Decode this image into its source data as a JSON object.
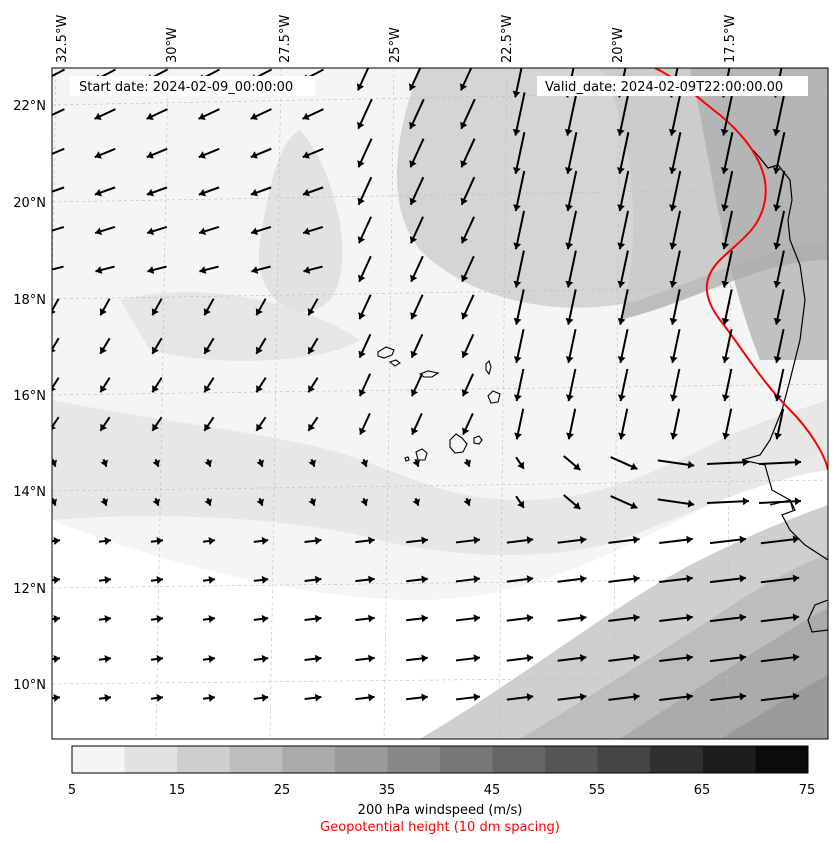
{
  "start_date": "Start date: 2024-02-09_00:00:00",
  "valid_date": "Valid_date: 2024-02-09T22:00:00.00",
  "lon_labels": [
    "32.5°W",
    "30°W",
    "27.5°W",
    "25°W",
    "22.5°W",
    "20°W",
    "17.5°W"
  ],
  "lat_labels": [
    "22°N",
    "20°N",
    "18°N",
    "16°N",
    "14°N",
    "12°N",
    "10°N"
  ],
  "colorbar": {
    "ticks": [
      "5",
      "15",
      "25",
      "35",
      "45",
      "55",
      "65",
      "75"
    ],
    "colors": [
      "#f5f5f5",
      "#e2e2e2",
      "#cfcfcf",
      "#bdbdbd",
      "#ababab",
      "#9a9a9a",
      "#888888",
      "#777777",
      "#666666",
      "#555555",
      "#444444",
      "#2f2f2f",
      "#1d1d1d",
      "#0b0b0b"
    ],
    "label": "200 hPa windspeed (m/s)",
    "sublabel": "Geopotential height (10 dm spacing)"
  },
  "contour_color": "#ff0000"
}
